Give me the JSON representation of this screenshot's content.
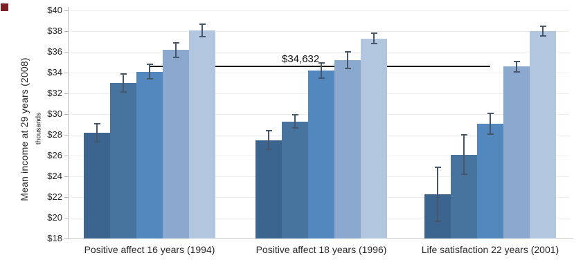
{
  "window": {
    "background": "#FFFFFF"
  },
  "corner_marker": {
    "color": "#7A2125"
  },
  "chart_data": {
    "type": "bar",
    "title": "",
    "xlabel": "",
    "ylabel": "Mean income at 29 years (2008)",
    "ylabel_sub": "thousands",
    "ylim": [
      18,
      40
    ],
    "ytick_step": 2,
    "ytick_labels": [
      "$40",
      "$38",
      "$36",
      "$34",
      "$32",
      "$30",
      "$28",
      "$26",
      "$24",
      "$22",
      "$20",
      "$18"
    ],
    "grid": "horizontal",
    "legend": "none",
    "categories": [
      "Positive affect 16 years (1994)",
      "Positive affect 18 years (1996)",
      "Life satisfaction 22 years (2001)"
    ],
    "series": [
      {
        "color": "#3B658F",
        "values": [
          28.2,
          27.5,
          22.3
        ],
        "errors": [
          0.85,
          0.9,
          2.6
        ]
      },
      {
        "color": "#47749F",
        "values": [
          33.0,
          29.3,
          26.1
        ],
        "errors": [
          0.85,
          0.65,
          1.9
        ]
      },
      {
        "color": "#5288BE",
        "values": [
          34.1,
          34.2,
          29.1
        ],
        "errors": [
          0.7,
          0.75,
          1.0
        ]
      },
      {
        "color": "#8BA8CF",
        "values": [
          36.2,
          35.2,
          34.6
        ],
        "errors": [
          0.7,
          0.8,
          0.5
        ]
      },
      {
        "color": "#B3C6DF",
        "values": [
          38.1,
          37.3,
          38.0
        ],
        "errors": [
          0.6,
          0.5,
          0.45
        ]
      }
    ],
    "error_bar_color": "#45566B",
    "reference_line": {
      "value": 34.632,
      "label": "$34,632",
      "color": "#1A1A1A"
    }
  }
}
